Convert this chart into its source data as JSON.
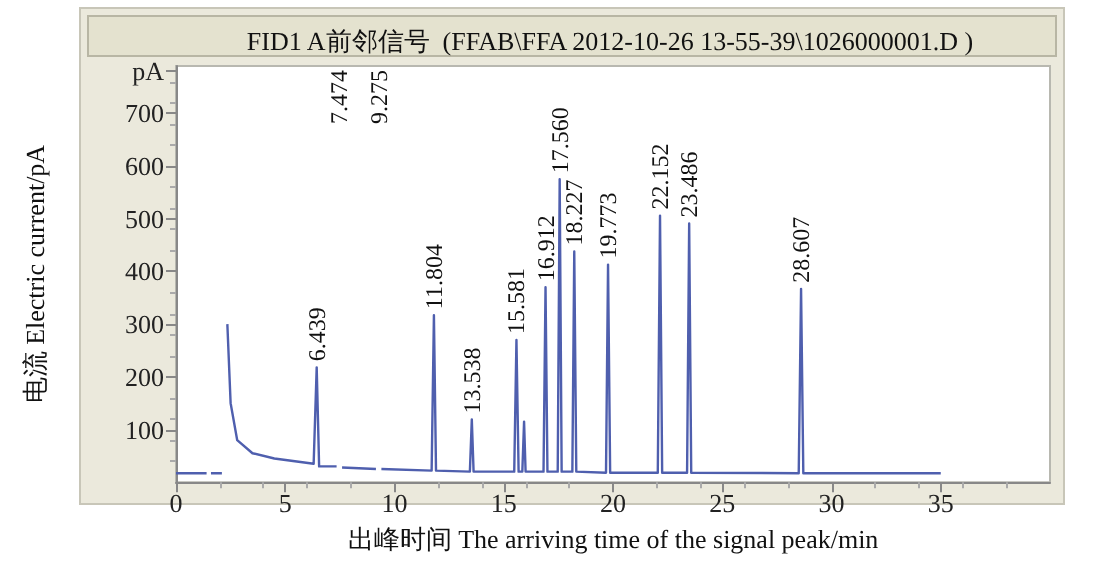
{
  "chart_data": {
    "type": "line",
    "title": "FID1 A前邻信号  (FFAB\\FFA 2012-10-26 13-55-39\\1026000001.D )",
    "xlabel": "出峰时间 The arriving time of the signal peak/min",
    "ylabel": "电流 Electric current/pA",
    "xlim": [
      0,
      40
    ],
    "xticks": [
      0,
      5,
      10,
      15,
      20,
      25,
      30,
      35
    ],
    "ylim": [
      0,
      790
    ],
    "yticks": [
      100,
      200,
      300,
      400,
      500,
      600,
      700,
      {
        "value": 780,
        "label": "pA"
      }
    ],
    "grid": false,
    "marker": "none",
    "line_style": "solid",
    "series": [
      {
        "color": "#4f5fae",
        "x": [
          0,
          1.4,
          1.5,
          1.6,
          2.1,
          2.2,
          2.35,
          2.5,
          2.8,
          3.5,
          4.5,
          6.3,
          6.439,
          6.55,
          7.35,
          7.474,
          7.6,
          9.15,
          9.275,
          9.4,
          11.7,
          11.804,
          11.9,
          13.45,
          13.538,
          13.62,
          15.48,
          15.581,
          15.68,
          15.85,
          15.93,
          16.0,
          16.82,
          16.912,
          17.0,
          17.47,
          17.56,
          17.65,
          18.14,
          18.227,
          18.32,
          19.68,
          19.773,
          19.87,
          22.05,
          22.152,
          22.25,
          23.39,
          23.486,
          23.58,
          28.5,
          28.607,
          28.71,
          35
        ],
        "values": [
          17,
          17,
          null,
          17,
          17,
          null,
          300,
          150,
          80,
          55,
          45,
          35,
          218,
          30,
          30,
          null,
          28,
          25,
          null,
          25,
          22,
          317,
          22,
          20,
          119,
          20,
          20,
          270,
          20,
          20,
          115,
          20,
          20,
          370,
          20,
          20,
          575,
          20,
          20,
          438,
          20,
          18,
          413,
          18,
          18,
          506,
          18,
          18,
          491,
          18,
          17,
          367,
          17,
          17
        ]
      }
    ],
    "annotations": [
      {
        "text": "6.439",
        "x": 6.439,
        "y": 218
      },
      {
        "text": "7.474",
        "x": 7.474
      },
      {
        "text": "9.275",
        "x": 9.275
      },
      {
        "text": "11.804",
        "x": 11.804,
        "y": 317
      },
      {
        "text": "13.538",
        "x": 13.538,
        "y": 119
      },
      {
        "text": "15.581",
        "x": 15.581,
        "y": 270
      },
      {
        "text": "16.912",
        "x": 16.912,
        "y": 370
      },
      {
        "text": "17.560",
        "x": 17.56,
        "y": 575
      },
      {
        "text": "18.227",
        "x": 18.227,
        "y": 438
      },
      {
        "text": "19.773",
        "x": 19.773,
        "y": 413
      },
      {
        "text": "22.152",
        "x": 22.152,
        "y": 506
      },
      {
        "text": "23.486",
        "x": 23.486,
        "y": 491
      },
      {
        "text": "28.607",
        "x": 28.607,
        "y": 367
      }
    ]
  }
}
